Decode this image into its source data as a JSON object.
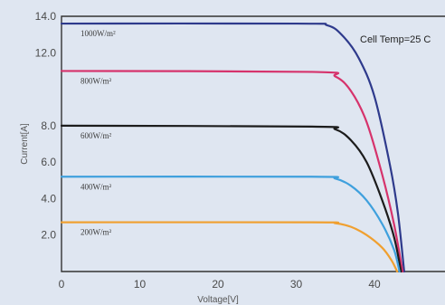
{
  "chart_data": {
    "type": "line",
    "xlabel": "Voltage[V]",
    "ylabel": "Current[A]",
    "xlim": [
      0,
      48
    ],
    "ylim": [
      0,
      14
    ],
    "x_ticks": [
      "0",
      "10",
      "20",
      "30",
      "40"
    ],
    "y_ticks": [
      {
        "value": 2,
        "label": "2.0"
      },
      {
        "value": 4,
        "label": "4.0"
      },
      {
        "value": 6,
        "label": "6.0"
      },
      {
        "value": 8,
        "label": "8.0"
      },
      {
        "value": 12,
        "label": "12.0"
      },
      {
        "value": 14,
        "label": "14.0"
      }
    ],
    "annotation": "Cell Temp=25 C",
    "series": [
      {
        "name": "1000W/m²",
        "color": "#2e3a8c",
        "x": [
          0,
          30,
          34,
          36,
          38,
          40,
          42,
          43,
          43.8
        ],
        "y": [
          13.6,
          13.6,
          13.5,
          12.9,
          11.7,
          9.6,
          5.8,
          3.2,
          0
        ]
      },
      {
        "name": "800W/m²",
        "color": "#d6336c",
        "x": [
          0,
          32,
          35,
          37,
          39,
          41,
          42.5,
          43.6
        ],
        "y": [
          11.0,
          10.95,
          10.7,
          9.9,
          8.2,
          5.3,
          2.6,
          0
        ]
      },
      {
        "name": "600W/m²",
        "color": "#1c1c1c",
        "x": [
          0,
          32,
          35,
          37,
          39,
          41,
          42.5,
          43.4
        ],
        "y": [
          8.0,
          7.95,
          7.8,
          7.2,
          6.0,
          3.9,
          1.9,
          0
        ]
      },
      {
        "name": "400W/m²",
        "color": "#3fa0dd",
        "x": [
          0,
          32,
          35,
          37,
          39,
          41,
          42.5,
          43.2
        ],
        "y": [
          5.2,
          5.2,
          5.1,
          4.7,
          3.9,
          2.6,
          1.2,
          0
        ]
      },
      {
        "name": "200W/m²",
        "color": "#f0a030",
        "x": [
          0,
          32,
          35,
          37,
          39,
          41,
          42.2,
          42.9
        ],
        "y": [
          2.7,
          2.7,
          2.65,
          2.45,
          2.0,
          1.3,
          0.6,
          0
        ]
      }
    ]
  }
}
